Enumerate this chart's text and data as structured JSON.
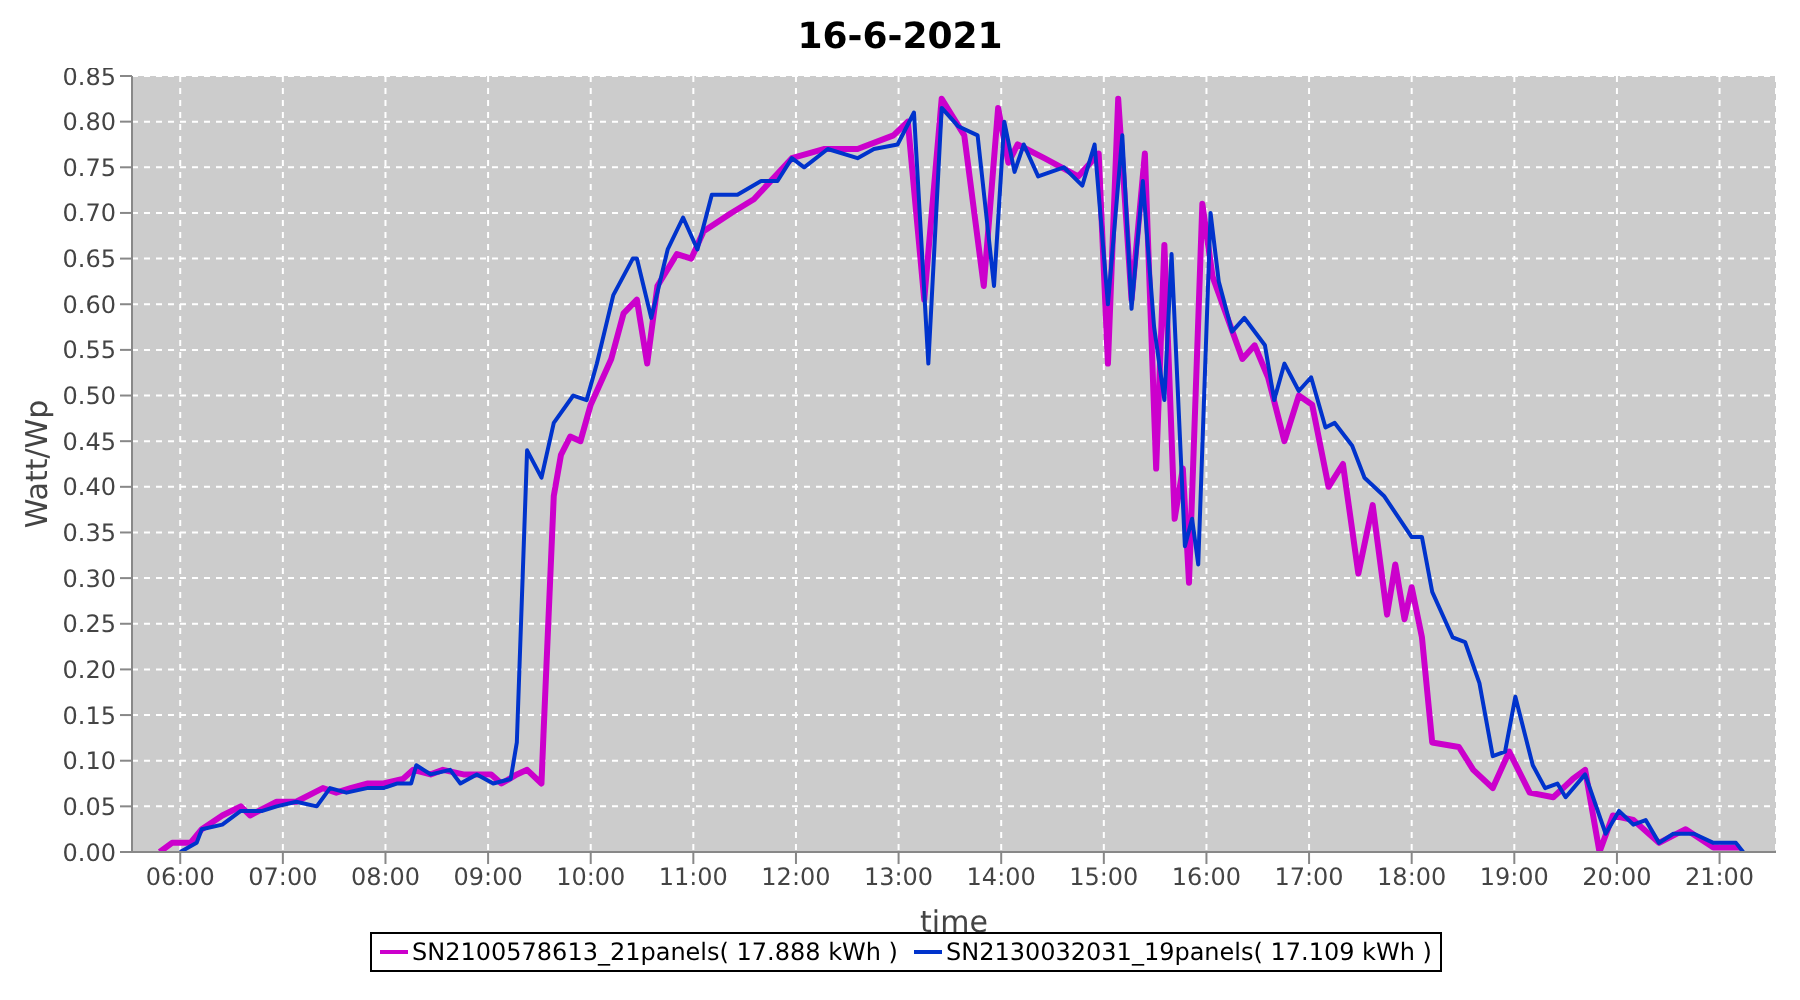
{
  "chart_data": {
    "type": "line",
    "title": "16-6-2021",
    "xlabel": "time",
    "ylabel": "Watt/Wp",
    "xlim": [
      5.53,
      21.55
    ],
    "ylim": [
      0,
      0.85
    ],
    "xticks": [
      {
        "value": 6,
        "label": "06:00"
      },
      {
        "value": 7,
        "label": "07:00"
      },
      {
        "value": 8,
        "label": "08:00"
      },
      {
        "value": 9,
        "label": "09:00"
      },
      {
        "value": 10,
        "label": "10:00"
      },
      {
        "value": 11,
        "label": "11:00"
      },
      {
        "value": 12,
        "label": "12:00"
      },
      {
        "value": 13,
        "label": "13:00"
      },
      {
        "value": 14,
        "label": "14:00"
      },
      {
        "value": 15,
        "label": "15:00"
      },
      {
        "value": 16,
        "label": "16:00"
      },
      {
        "value": 17,
        "label": "17:00"
      },
      {
        "value": 18,
        "label": "18:00"
      },
      {
        "value": 19,
        "label": "19:00"
      },
      {
        "value": 20,
        "label": "20:00"
      },
      {
        "value": 21,
        "label": "21:00"
      }
    ],
    "yticks": [
      {
        "value": 0,
        "label": "0.00"
      },
      {
        "value": 0.05,
        "label": "0.05"
      },
      {
        "value": 0.1,
        "label": "0.10"
      },
      {
        "value": 0.15,
        "label": "0.15"
      },
      {
        "value": 0.2,
        "label": "0.20"
      },
      {
        "value": 0.25,
        "label": "0.25"
      },
      {
        "value": 0.3,
        "label": "0.30"
      },
      {
        "value": 0.35,
        "label": "0.35"
      },
      {
        "value": 0.4,
        "label": "0.40"
      },
      {
        "value": 0.45,
        "label": "0.45"
      },
      {
        "value": 0.5,
        "label": "0.50"
      },
      {
        "value": 0.55,
        "label": "0.55"
      },
      {
        "value": 0.6,
        "label": "0.60"
      },
      {
        "value": 0.65,
        "label": "0.65"
      },
      {
        "value": 0.7,
        "label": "0.70"
      },
      {
        "value": 0.75,
        "label": "0.75"
      },
      {
        "value": 0.8,
        "label": "0.80"
      },
      {
        "value": 0.85,
        "label": "0.85"
      }
    ],
    "grid": true,
    "legend": "bottom",
    "marker": "none",
    "line_style": "solid",
    "series": [
      {
        "name": "SN2100578613_21panels( 17.888 kWh )",
        "color": "#cc00cc",
        "x": [
          5.8,
          5.92,
          6.1,
          6.21,
          6.41,
          6.59,
          6.68,
          6.94,
          7.13,
          7.39,
          7.52,
          7.66,
          7.82,
          7.98,
          8.17,
          8.27,
          8.44,
          8.56,
          8.76,
          9.03,
          9.13,
          9.28,
          9.38,
          9.52,
          9.54,
          9.64,
          9.71,
          9.8,
          9.9,
          10.0,
          10.2,
          10.32,
          10.45,
          10.55,
          10.65,
          10.84,
          10.98,
          11.1,
          11.37,
          11.59,
          11.96,
          12.27,
          12.6,
          12.95,
          13.09,
          13.25,
          13.42,
          13.64,
          13.83,
          13.97,
          14.07,
          14.16,
          14.42,
          14.75,
          14.95,
          15.04,
          15.14,
          15.27,
          15.4,
          15.51,
          15.59,
          15.69,
          15.77,
          15.83,
          15.96,
          16.06,
          16.35,
          16.47,
          16.6,
          16.76,
          16.9,
          17.03,
          17.19,
          17.33,
          17.48,
          17.62,
          17.76,
          17.84,
          17.93,
          18.0,
          18.1,
          18.2,
          18.46,
          18.6,
          18.79,
          18.95,
          19.15,
          19.38,
          19.57,
          19.69,
          19.83,
          19.96,
          20.16,
          20.41,
          20.67,
          20.94,
          21.2
        ],
        "values": [
          0,
          0.01,
          0.01,
          0.025,
          0.04,
          0.05,
          0.04,
          0.055,
          0.055,
          0.07,
          0.065,
          0.07,
          0.075,
          0.075,
          0.08,
          0.09,
          0.085,
          0.09,
          0.085,
          0.085,
          0.075,
          0.085,
          0.09,
          0.075,
          0.13,
          0.39,
          0.435,
          0.455,
          0.45,
          0.49,
          0.54,
          0.59,
          0.605,
          0.535,
          0.62,
          0.655,
          0.65,
          0.68,
          0.7,
          0.715,
          0.76,
          0.77,
          0.77,
          0.785,
          0.8,
          0.605,
          0.825,
          0.785,
          0.62,
          0.815,
          0.755,
          0.775,
          0.76,
          0.74,
          0.765,
          0.535,
          0.825,
          0.605,
          0.765,
          0.42,
          0.665,
          0.365,
          0.42,
          0.295,
          0.71,
          0.63,
          0.54,
          0.555,
          0.52,
          0.45,
          0.5,
          0.49,
          0.4,
          0.425,
          0.305,
          0.38,
          0.26,
          0.315,
          0.255,
          0.29,
          0.235,
          0.12,
          0.115,
          0.09,
          0.07,
          0.11,
          0.065,
          0.06,
          0.08,
          0.09,
          0,
          0.04,
          0.035,
          0.01,
          0.025,
          0.005,
          0.005
        ]
      },
      {
        "name": "SN2130032031_19panels( 17.109 kWh )",
        "color": "#0033cc",
        "x": [
          6.0,
          6.16,
          6.21,
          6.41,
          6.59,
          6.8,
          6.94,
          7.13,
          7.33,
          7.46,
          7.62,
          7.82,
          7.98,
          8.11,
          8.25,
          8.3,
          8.44,
          8.63,
          8.73,
          8.89,
          9.05,
          9.22,
          9.28,
          9.38,
          9.52,
          9.64,
          9.83,
          9.96,
          10.06,
          10.22,
          10.41,
          10.45,
          10.59,
          10.75,
          10.9,
          11.04,
          11.18,
          11.43,
          11.66,
          11.82,
          11.96,
          12.08,
          12.31,
          12.6,
          12.76,
          12.99,
          13.15,
          13.29,
          13.42,
          13.58,
          13.77,
          13.93,
          14.03,
          14.13,
          14.22,
          14.36,
          14.61,
          14.79,
          14.91,
          15.04,
          15.18,
          15.27,
          15.38,
          15.49,
          15.59,
          15.66,
          15.79,
          15.86,
          15.92,
          16.04,
          16.12,
          16.25,
          16.37,
          16.57,
          16.66,
          16.76,
          16.9,
          17.02,
          17.16,
          17.25,
          17.42,
          17.54,
          17.73,
          18.0,
          18.1,
          18.2,
          18.4,
          18.52,
          18.66,
          18.79,
          18.91,
          19.01,
          19.18,
          19.3,
          19.42,
          19.5,
          19.69,
          19.89,
          20.02,
          20.16,
          20.28,
          20.41,
          20.55,
          20.75,
          20.94,
          21.16,
          21.23
        ],
        "values": [
          0,
          0.01,
          0.025,
          0.03,
          0.045,
          0.045,
          0.05,
          0.055,
          0.05,
          0.07,
          0.065,
          0.07,
          0.07,
          0.075,
          0.075,
          0.095,
          0.085,
          0.09,
          0.075,
          0.085,
          0.075,
          0.08,
          0.12,
          0.44,
          0.41,
          0.47,
          0.5,
          0.495,
          0.535,
          0.61,
          0.65,
          0.65,
          0.585,
          0.66,
          0.695,
          0.66,
          0.72,
          0.72,
          0.735,
          0.735,
          0.76,
          0.75,
          0.77,
          0.76,
          0.77,
          0.775,
          0.81,
          0.535,
          0.815,
          0.795,
          0.785,
          0.62,
          0.8,
          0.745,
          0.775,
          0.74,
          0.75,
          0.73,
          0.775,
          0.6,
          0.785,
          0.595,
          0.735,
          0.575,
          0.495,
          0.655,
          0.335,
          0.365,
          0.315,
          0.7,
          0.625,
          0.57,
          0.585,
          0.555,
          0.495,
          0.535,
          0.505,
          0.52,
          0.465,
          0.47,
          0.445,
          0.41,
          0.39,
          0.345,
          0.345,
          0.285,
          0.235,
          0.23,
          0.185,
          0.105,
          0.11,
          0.17,
          0.095,
          0.07,
          0.075,
          0.06,
          0.085,
          0.02,
          0.045,
          0.03,
          0.035,
          0.01,
          0.02,
          0.02,
          0.01,
          0.01,
          0
        ]
      }
    ]
  }
}
